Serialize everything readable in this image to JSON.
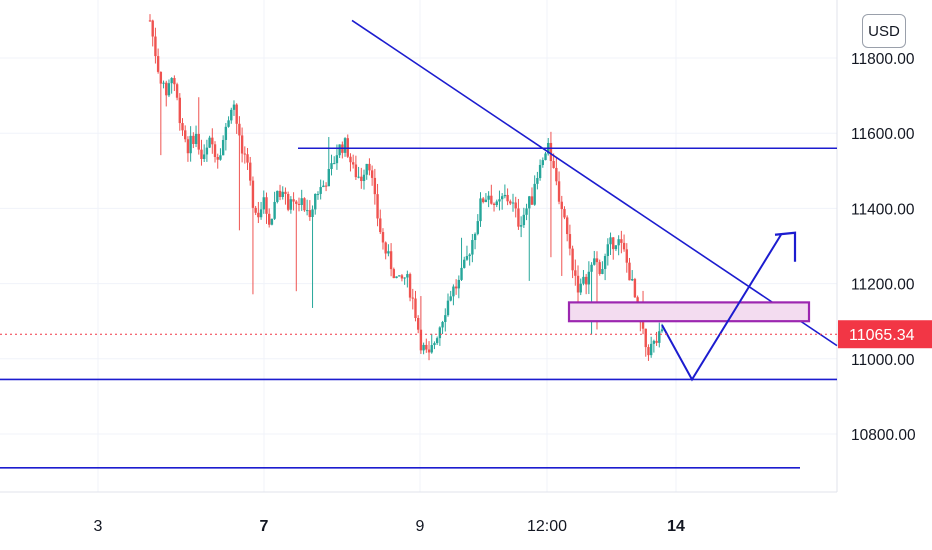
{
  "currency_label": "USD",
  "current_price": {
    "value": 11065.34,
    "label": "11065.34",
    "color": "#f23645"
  },
  "colors": {
    "up": "#26a69a",
    "down": "#ef5350",
    "annotation": "#1c1ccf",
    "zone": "#9c27b0",
    "zone_fill": "#f3dcf0"
  },
  "chart_data": {
    "type": "candlestick",
    "title": "",
    "xlabel": "",
    "ylabel": "",
    "ylim": [
      10660,
      11890
    ],
    "yticks": [
      10800,
      11000,
      11200,
      11400,
      11600,
      11800
    ],
    "ytick_labels": [
      "10800.00",
      "11000.00",
      "11200.00",
      "11400.00",
      "11600.00",
      "11800.00"
    ],
    "xticks": [
      {
        "label": "3",
        "bold": false
      },
      {
        "label": "7",
        "bold": true
      },
      {
        "label": "9",
        "bold": false
      },
      {
        "label": "12:00",
        "bold": false
      },
      {
        "label": "14",
        "bold": true
      }
    ],
    "grid": true,
    "price_path": [
      [
        0,
        11900
      ],
      [
        2,
        11780
      ],
      [
        4,
        11700
      ],
      [
        6,
        11760
      ],
      [
        8,
        11640
      ],
      [
        10,
        11560
      ],
      [
        12,
        11600
      ],
      [
        14,
        11520
      ],
      [
        16,
        11580
      ],
      [
        18,
        11540
      ],
      [
        20,
        11600
      ],
      [
        22,
        11700
      ],
      [
        24,
        11560
      ],
      [
        26,
        11500
      ],
      [
        28,
        11380
      ],
      [
        30,
        11420
      ],
      [
        32,
        11360
      ],
      [
        34,
        11460
      ],
      [
        36,
        11420
      ],
      [
        38,
        11400
      ],
      [
        40,
        11420
      ],
      [
        42,
        11380
      ],
      [
        44,
        11440
      ],
      [
        46,
        11460
      ],
      [
        48,
        11500
      ],
      [
        50,
        11560
      ],
      [
        52,
        11570
      ],
      [
        54,
        11500
      ],
      [
        56,
        11480
      ],
      [
        58,
        11540
      ],
      [
        60,
        11400
      ],
      [
        62,
        11300
      ],
      [
        64,
        11250
      ],
      [
        66,
        11200
      ],
      [
        68,
        11220
      ],
      [
        70,
        11150
      ],
      [
        72,
        11040
      ],
      [
        74,
        11000
      ],
      [
        76,
        11060
      ],
      [
        78,
        11120
      ],
      [
        80,
        11180
      ],
      [
        82,
        11200
      ],
      [
        84,
        11260
      ],
      [
        86,
        11330
      ],
      [
        88,
        11420
      ],
      [
        90,
        11440
      ],
      [
        92,
        11400
      ],
      [
        94,
        11430
      ],
      [
        96,
        11420
      ],
      [
        98,
        11360
      ],
      [
        100,
        11400
      ],
      [
        102,
        11440
      ],
      [
        104,
        11520
      ],
      [
        106,
        11560
      ],
      [
        108,
        11460
      ],
      [
        110,
        11380
      ],
      [
        112,
        11260
      ],
      [
        114,
        11180
      ],
      [
        116,
        11220
      ],
      [
        118,
        11250
      ],
      [
        120,
        11240
      ],
      [
        122,
        11300
      ],
      [
        124,
        11320
      ],
      [
        126,
        11280
      ],
      [
        128,
        11200
      ],
      [
        130,
        11100
      ],
      [
        132,
        11020
      ],
      [
        134,
        11040
      ],
      [
        136,
        11065
      ]
    ],
    "annotations": {
      "horizontal_lines": [
        11560,
        10945,
        10710
      ],
      "descending_trendline": [
        [
          11900,
          11035
        ]
      ],
      "zone": [
        11100,
        11150
      ],
      "projected_path_prices": [
        11090,
        10945,
        11330
      ]
    }
  }
}
